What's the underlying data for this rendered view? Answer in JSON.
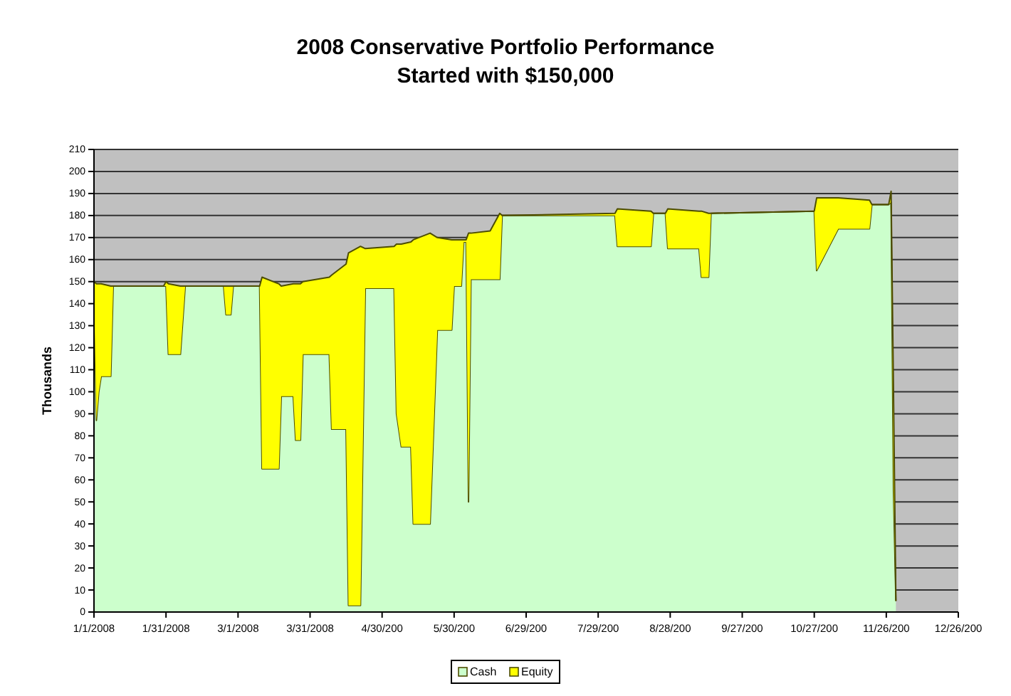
{
  "chart_data": {
    "type": "area",
    "stacked": true,
    "title": "2008 Conservative Portfolio Performance",
    "subtitle": "Started with $150,000",
    "ylabel": "Thousands",
    "x": [
      "2008-01-01",
      "2008-01-02",
      "2008-01-03",
      "2008-01-04",
      "2008-01-08",
      "2008-01-09",
      "2008-01-30",
      "2008-01-31",
      "2008-02-01",
      "2008-02-06",
      "2008-02-08",
      "2008-02-24",
      "2008-02-25",
      "2008-02-27",
      "2008-02-28",
      "2008-03-10",
      "2008-03-11",
      "2008-03-18",
      "2008-03-19",
      "2008-03-24",
      "2008-03-25",
      "2008-03-27",
      "2008-03-28",
      "2008-04-08",
      "2008-04-09",
      "2008-04-15",
      "2008-04-16",
      "2008-04-21",
      "2008-04-23",
      "2008-05-05",
      "2008-05-06",
      "2008-05-08",
      "2008-05-12",
      "2008-05-13",
      "2008-05-20",
      "2008-05-23",
      "2008-05-29",
      "2008-05-30",
      "2008-06-02",
      "2008-06-03",
      "2008-06-04",
      "2008-06-05",
      "2008-06-06",
      "2008-06-14",
      "2008-06-18",
      "2008-06-19",
      "2008-08-05",
      "2008-08-06",
      "2008-08-20",
      "2008-08-21",
      "2008-08-26",
      "2008-08-27",
      "2008-09-09",
      "2008-09-10",
      "2008-09-13",
      "2008-09-14",
      "2008-10-27",
      "2008-10-28",
      "2008-11-06",
      "2008-11-19",
      "2008-11-20",
      "2008-11-27",
      "2008-11-28",
      "2008-11-29",
      "2008-11-30"
    ],
    "series": [
      {
        "name": "Cash",
        "color": "#ccffcc",
        "values": [
          148,
          87,
          100,
          107,
          107,
          148,
          148,
          148,
          117,
          117,
          148,
          148,
          135,
          135,
          148,
          148,
          65,
          65,
          98,
          98,
          78,
          78,
          117,
          117,
          83,
          83,
          3,
          3,
          147,
          147,
          90,
          75,
          75,
          40,
          40,
          128,
          128,
          148,
          148,
          168,
          168,
          50,
          151,
          151,
          151,
          180,
          180,
          166,
          166,
          181,
          181,
          165,
          165,
          152,
          152,
          181,
          182,
          155,
          174,
          174,
          185,
          185,
          186,
          55,
          5
        ]
      },
      {
        "name": "Equity",
        "color": "#ffff00",
        "values": [
          2,
          62,
          49,
          42,
          41,
          0,
          0,
          2,
          32,
          31,
          0,
          0,
          13,
          13,
          0,
          0,
          87,
          84,
          50,
          51,
          71,
          71,
          33,
          35,
          70,
          75,
          160,
          163,
          18,
          19,
          77,
          92,
          93,
          129,
          132,
          42,
          41,
          21,
          21,
          1,
          1,
          122,
          21,
          22,
          30,
          0,
          1,
          17,
          16,
          0,
          0,
          18,
          17,
          30,
          29,
          0,
          0,
          33,
          14,
          13,
          0,
          0,
          5,
          45,
          0
        ]
      }
    ],
    "xlim": [
      "2008-01-01",
      "2008-12-26"
    ],
    "xticks": [
      {
        "value": "2008-01-01",
        "label": "1/1/2008"
      },
      {
        "value": "2008-01-31",
        "label": "1/31/2008"
      },
      {
        "value": "2008-03-01",
        "label": "3/1/2008"
      },
      {
        "value": "2008-03-31",
        "label": "3/31/2008"
      },
      {
        "value": "2008-04-30",
        "label": "4/30/200"
      },
      {
        "value": "2008-05-30",
        "label": "5/30/200"
      },
      {
        "value": "2008-06-29",
        "label": "6/29/200"
      },
      {
        "value": "2008-07-29",
        "label": "7/29/200"
      },
      {
        "value": "2008-08-28",
        "label": "8/28/200"
      },
      {
        "value": "2008-09-27",
        "label": "9/27/200"
      },
      {
        "value": "2008-10-27",
        "label": "10/27/200"
      },
      {
        "value": "2008-11-26",
        "label": "11/26/200"
      },
      {
        "value": "2008-12-26",
        "label": "12/26/200"
      }
    ],
    "ylim": [
      0,
      210
    ],
    "yticks": [
      0,
      10,
      20,
      30,
      40,
      50,
      60,
      70,
      80,
      90,
      100,
      110,
      120,
      130,
      140,
      150,
      160,
      170,
      180,
      190,
      200,
      210
    ],
    "grid": "y",
    "legend": "bottom"
  }
}
